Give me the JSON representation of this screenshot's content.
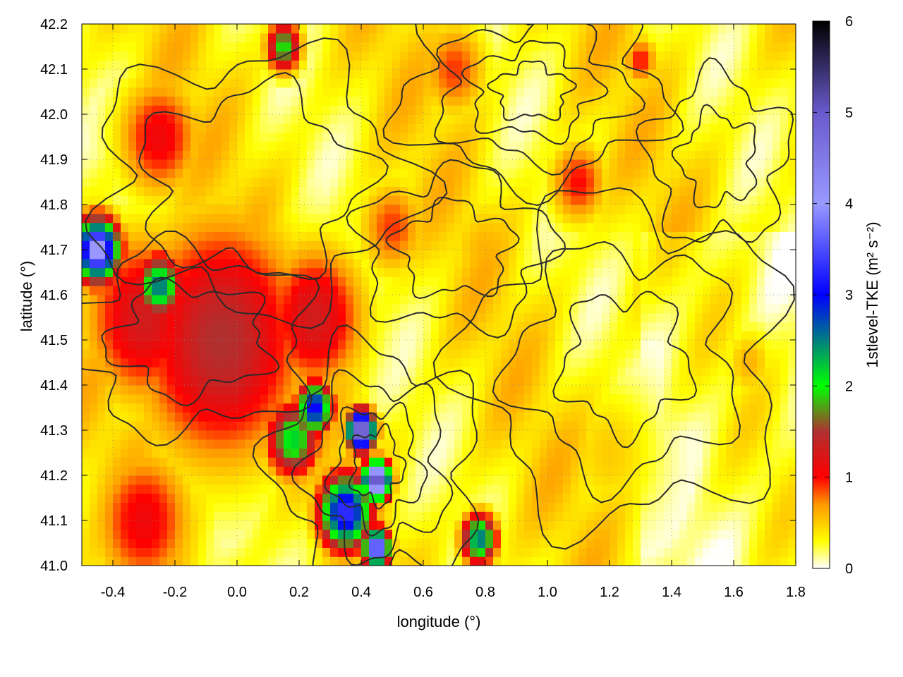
{
  "chart_data": {
    "type": "heatmap",
    "title": "",
    "xlabel": "longitude (°)",
    "ylabel": "latitude (°)",
    "xlim": [
      -0.5,
      1.8
    ],
    "ylim": [
      41.0,
      42.2
    ],
    "x_ticks": [
      -0.4,
      -0.2,
      0.0,
      0.2,
      0.4,
      0.6,
      0.8,
      1.0,
      1.2,
      1.4,
      1.6,
      1.8
    ],
    "x_tick_labels": [
      "-0.4",
      "-0.2",
      "0.0",
      "0.2",
      "0.4",
      "0.6",
      "0.8",
      "1.0",
      "1.2",
      "1.4",
      "1.6",
      "1.8"
    ],
    "y_ticks": [
      41.0,
      41.1,
      41.2,
      41.3,
      41.4,
      41.5,
      41.6,
      41.7,
      41.8,
      41.9,
      42.0,
      42.1,
      42.2
    ],
    "y_tick_labels": [
      "41.0",
      "41.1",
      "41.2",
      "41.3",
      "41.4",
      "41.5",
      "41.6",
      "41.7",
      "41.8",
      "41.9",
      "42.0",
      "42.1",
      "42.2"
    ],
    "grid": true,
    "colorbar": {
      "label": "1stlevel-TKE",
      "unit": "(m² s⁻²)",
      "range": [
        0,
        6
      ],
      "ticks": [
        0,
        1,
        2,
        3,
        4,
        5,
        6
      ],
      "tick_labels": [
        "0",
        "1",
        "2",
        "3",
        "4",
        "5",
        "6"
      ],
      "colors": [
        {
          "v": 0.0,
          "c": "#ffffff"
        },
        {
          "v": 0.3,
          "c": "#ffff00"
        },
        {
          "v": 0.7,
          "c": "#ff9900"
        },
        {
          "v": 1.0,
          "c": "#ff0000"
        },
        {
          "v": 1.5,
          "c": "#b03030"
        },
        {
          "v": 2.0,
          "c": "#00ff00"
        },
        {
          "v": 3.0,
          "c": "#0000ff"
        },
        {
          "v": 4.0,
          "c": "#9999ff"
        },
        {
          "v": 5.0,
          "c": "#6a5acd"
        },
        {
          "v": 6.0,
          "c": "#000000"
        }
      ]
    },
    "field_features": [
      {
        "lon": -0.05,
        "lat": 41.5,
        "tke": 1.5,
        "spread": 0.2
      },
      {
        "lon": -0.3,
        "lat": 41.55,
        "tke": 1.3,
        "spread": 0.14
      },
      {
        "lon": -0.45,
        "lat": 41.7,
        "tke": 4.2,
        "spread": 0.05
      },
      {
        "lon": -0.25,
        "lat": 41.62,
        "tke": 2.6,
        "spread": 0.05
      },
      {
        "lon": 0.18,
        "lat": 41.28,
        "tke": 2.2,
        "spread": 0.06
      },
      {
        "lon": 0.25,
        "lat": 41.35,
        "tke": 3.2,
        "spread": 0.04
      },
      {
        "lon": 0.4,
        "lat": 41.3,
        "tke": 5.6,
        "spread": 0.03
      },
      {
        "lon": 0.45,
        "lat": 41.19,
        "tke": 5.4,
        "spread": 0.03
      },
      {
        "lon": 0.35,
        "lat": 41.12,
        "tke": 3.4,
        "spread": 0.06
      },
      {
        "lon": 0.45,
        "lat": 41.04,
        "tke": 4.2,
        "spread": 0.03
      },
      {
        "lon": 0.78,
        "lat": 41.06,
        "tke": 2.6,
        "spread": 0.04
      },
      {
        "lon": 0.25,
        "lat": 41.55,
        "tke": 1.3,
        "spread": 0.12
      },
      {
        "lon": -0.3,
        "lat": 41.1,
        "tke": 1.1,
        "spread": 0.12
      },
      {
        "lon": -0.25,
        "lat": 41.95,
        "tke": 1.1,
        "spread": 0.1
      },
      {
        "lon": 0.15,
        "lat": 42.15,
        "tke": 2.0,
        "spread": 0.04
      },
      {
        "lon": 0.7,
        "lat": 42.1,
        "tke": 0.9,
        "spread": 0.08
      },
      {
        "lon": 1.1,
        "lat": 41.85,
        "tke": 1.0,
        "spread": 0.07
      },
      {
        "lon": 1.3,
        "lat": 42.12,
        "tke": 1.0,
        "spread": 0.04
      },
      {
        "lon": 0.5,
        "lat": 41.75,
        "tke": 0.9,
        "spread": 0.08
      },
      {
        "lon": 0.8,
        "lat": 41.7,
        "tke": 0.6,
        "spread": 0.1
      },
      {
        "lon": 1.2,
        "lat": 41.25,
        "tke": 0.5,
        "spread": 0.12
      },
      {
        "lon": 1.65,
        "lat": 41.45,
        "tke": 0.6,
        "spread": 0.06
      }
    ]
  }
}
